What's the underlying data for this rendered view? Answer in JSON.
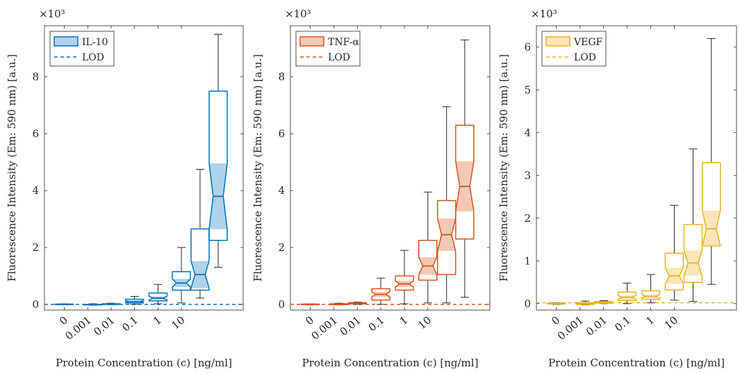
{
  "chart_data": [
    {
      "type": "box",
      "ylabel": "Fluorescence Intensity (Em: 590 nm) [a.u.]",
      "xlabel": "Protein Concentration (c) [ng/ml]",
      "y_multiplier": "×10³",
      "x_ticklabels": [
        "0",
        "0.001",
        "0.01",
        "0.1",
        "1",
        "10"
      ],
      "y_ticks": [
        0,
        2,
        4,
        6,
        8
      ],
      "ylim": [
        -0.2,
        9.8
      ],
      "legend": [
        "IL-10",
        "LOD"
      ],
      "legend_position": "top-left",
      "color": "#0072BD",
      "lod": 0.0,
      "boxes": [
        {
          "whisker_low": -0.01,
          "q1": -0.01,
          "median": 0.0,
          "q3": 0.01,
          "whisker_high": 0.02
        },
        {
          "whisker_low": -0.03,
          "q1": -0.02,
          "median": -0.01,
          "q3": 0.0,
          "whisker_high": 0.02
        },
        {
          "whisker_low": -0.01,
          "q1": 0.0,
          "median": 0.01,
          "q3": 0.02,
          "whisker_high": 0.04
        },
        {
          "whisker_low": 0.0,
          "q1": 0.05,
          "median": 0.1,
          "q3": 0.18,
          "whisker_high": 0.28
        },
        {
          "whisker_low": 0.02,
          "q1": 0.12,
          "median": 0.22,
          "q3": 0.4,
          "whisker_high": 0.7
        },
        {
          "whisker_low": 0.05,
          "q1": 0.5,
          "median": 0.75,
          "q3": 1.15,
          "whisker_high": 2.0
        },
        {
          "whisker_low": 0.22,
          "q1": 0.5,
          "median": 1.05,
          "q3": 2.65,
          "whisker_high": 4.75
        },
        {
          "whisker_low": 1.3,
          "q1": 2.25,
          "median": 3.8,
          "q3": 7.5,
          "whisker_high": 9.5
        }
      ]
    },
    {
      "type": "box",
      "ylabel": "Fluorescence Intensity (Em: 590 nm) [a.u.]",
      "xlabel": "Protein Concentration (c) [ng/ml]",
      "y_multiplier": "×10³",
      "x_ticklabels": [
        "0",
        "0.001",
        "0.01",
        "0.1",
        "1",
        "10"
      ],
      "y_ticks": [
        0,
        2,
        4,
        6,
        8
      ],
      "ylim": [
        -0.2,
        9.8
      ],
      "legend": [
        "TNF-α",
        "LOD"
      ],
      "legend_position": "top-left",
      "color": "#D95319",
      "lod": 0.0,
      "boxes": [
        {
          "whisker_low": -0.02,
          "q1": -0.01,
          "median": 0.0,
          "q3": 0.01,
          "whisker_high": 0.02
        },
        {
          "whisker_low": -0.02,
          "q1": -0.01,
          "median": 0.0,
          "q3": 0.02,
          "whisker_high": 0.04
        },
        {
          "whisker_low": 0.0,
          "q1": 0.02,
          "median": 0.04,
          "q3": 0.06,
          "whisker_high": 0.08
        },
        {
          "whisker_low": 0.0,
          "q1": 0.15,
          "median": 0.35,
          "q3": 0.55,
          "whisker_high": 0.92
        },
        {
          "whisker_low": 0.02,
          "q1": 0.5,
          "median": 0.72,
          "q3": 1.0,
          "whisker_high": 1.9
        },
        {
          "whisker_low": 0.05,
          "q1": 0.85,
          "median": 1.35,
          "q3": 2.25,
          "whisker_high": 3.95
        },
        {
          "whisker_low": 0.05,
          "q1": 1.05,
          "median": 2.45,
          "q3": 3.65,
          "whisker_high": 6.95
        },
        {
          "whisker_low": 0.25,
          "q1": 2.3,
          "median": 4.15,
          "q3": 6.3,
          "whisker_high": 9.3
        }
      ]
    },
    {
      "type": "box",
      "ylabel": "Fluorescence Intensity (Em: 590 nm) [a.u.]",
      "xlabel": "Protein Concentration (c) [ng/ml]",
      "y_multiplier": "×10³",
      "x_ticklabels": [
        "0",
        "0.001",
        "0.01",
        "0.1",
        "1",
        "10"
      ],
      "y_ticks": [
        0,
        1,
        2,
        3,
        4,
        5,
        6
      ],
      "ylim": [
        -0.15,
        6.5
      ],
      "legend": [
        "VEGF",
        "LOD"
      ],
      "legend_position": "top-left",
      "color": "#EDB120",
      "lod": 0.02,
      "boxes": [
        {
          "whisker_low": -0.02,
          "q1": -0.01,
          "median": 0.0,
          "q3": 0.01,
          "whisker_high": 0.02
        },
        {
          "whisker_low": -0.03,
          "q1": -0.02,
          "median": 0.0,
          "q3": 0.02,
          "whisker_high": 0.06
        },
        {
          "whisker_low": 0.0,
          "q1": 0.01,
          "median": 0.03,
          "q3": 0.05,
          "whisker_high": 0.07
        },
        {
          "whisker_low": 0.0,
          "q1": 0.08,
          "median": 0.15,
          "q3": 0.27,
          "whisker_high": 0.48
        },
        {
          "whisker_low": 0.02,
          "q1": 0.1,
          "median": 0.17,
          "q3": 0.3,
          "whisker_high": 0.68
        },
        {
          "whisker_low": 0.08,
          "q1": 0.32,
          "median": 0.65,
          "q3": 1.18,
          "whisker_high": 2.3
        },
        {
          "whisker_low": 0.05,
          "q1": 0.5,
          "median": 0.95,
          "q3": 1.85,
          "whisker_high": 3.62
        },
        {
          "whisker_low": 0.45,
          "q1": 1.35,
          "median": 1.75,
          "q3": 3.3,
          "whisker_high": 6.2
        }
      ]
    }
  ]
}
